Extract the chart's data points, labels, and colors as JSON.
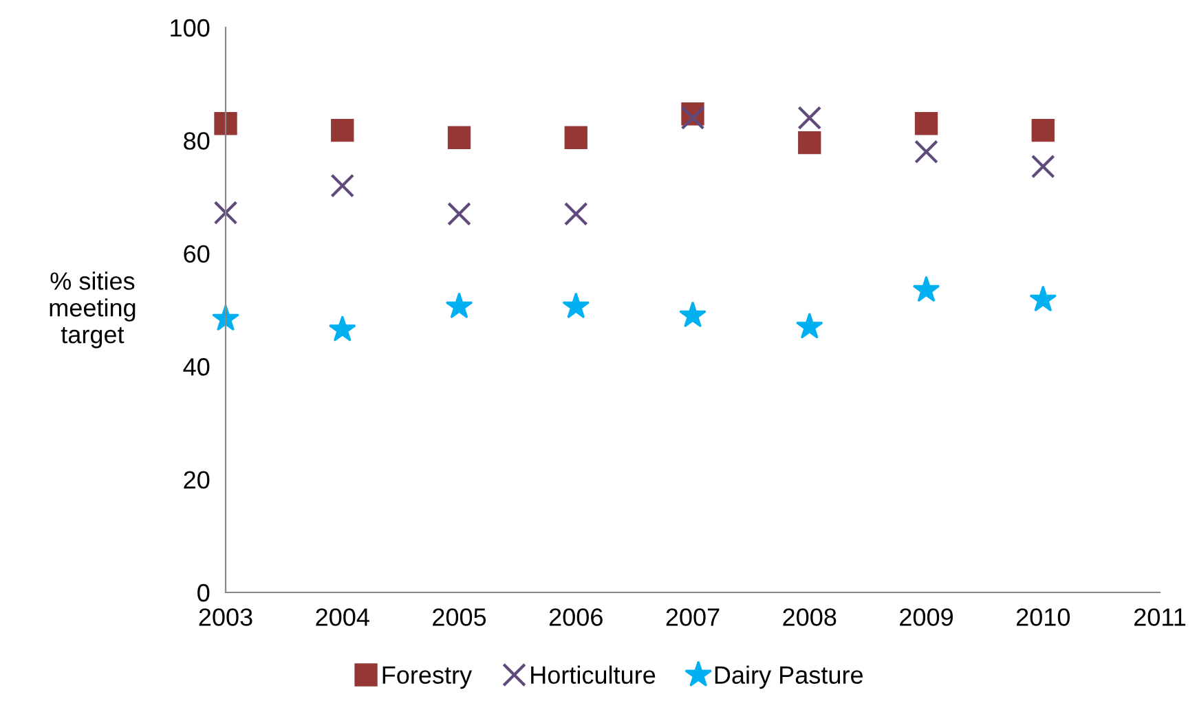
{
  "chart_data": {
    "type": "scatter",
    "ylabel": "% sities\nmeeting\ntarget",
    "x": [
      2003,
      2004,
      2005,
      2006,
      2007,
      2008,
      2009,
      2010
    ],
    "series": [
      {
        "name": "Forestry",
        "color": "#953735",
        "marker": "square",
        "values": [
          83,
          81.8,
          80.5,
          80.5,
          84.7,
          79.6,
          83,
          81.8
        ]
      },
      {
        "name": "Horticulture",
        "color": "#604a7b",
        "marker": "cross",
        "values": [
          67.2,
          72,
          67,
          67,
          84,
          84,
          78,
          75.4
        ]
      },
      {
        "name": "Dairy Pasture",
        "color": "#00b0f0",
        "marker": "star",
        "values": [
          48.4,
          46.5,
          50.6,
          50.6,
          49,
          47,
          53.5,
          51.8
        ]
      }
    ],
    "xlim": [
      2003,
      2011
    ],
    "xticks": [
      2003,
      2004,
      2005,
      2006,
      2007,
      2008,
      2009,
      2010,
      2011
    ],
    "ylim": [
      0,
      100
    ],
    "yticks": [
      0,
      20,
      40,
      60,
      80,
      100
    ],
    "grid": false,
    "legend": "bottom"
  }
}
